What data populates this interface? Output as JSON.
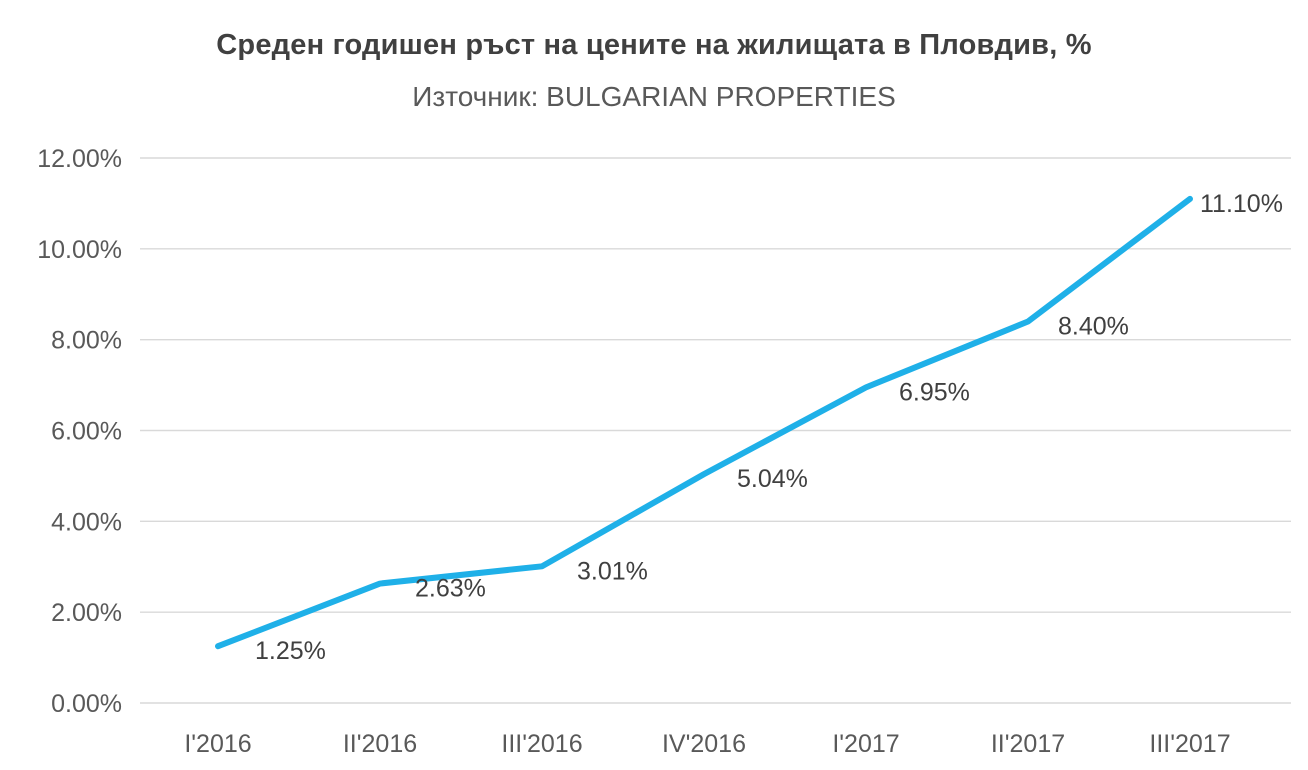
{
  "chart_data": {
    "type": "line",
    "title": "Среден годишен ръст на цените на жилищата в Пловдив, %",
    "subtitle": "Източник: BULGARIAN PROPERTIES",
    "categories": [
      "I'2016",
      "II'2016",
      "III'2016",
      "IV'2016",
      "I'2017",
      "II'2017",
      "III'2017"
    ],
    "series": [
      {
        "name": "Среден годишен ръст на цените",
        "values": [
          1.25,
          2.63,
          3.01,
          5.04,
          6.95,
          8.4,
          11.1
        ]
      }
    ],
    "data_labels": [
      "1.25%",
      "2.63%",
      "3.01%",
      "5.04%",
      "6.95%",
      "8.40%",
      "11.10%"
    ],
    "xlabel": "",
    "ylabel": "",
    "ylim": [
      0,
      12
    ],
    "ytick_step": 2,
    "ytick_labels": [
      "0.00%",
      "2.00%",
      "4.00%",
      "6.00%",
      "8.00%",
      "10.00%",
      "12.00%"
    ],
    "grid": true,
    "legend_position": "none",
    "colors": {
      "line": "#1FB0E8",
      "grid": "#D9D9D9",
      "title": "#404040",
      "axis_text": "#595959",
      "data_label": "#404040",
      "background": "#FFFFFF"
    }
  }
}
